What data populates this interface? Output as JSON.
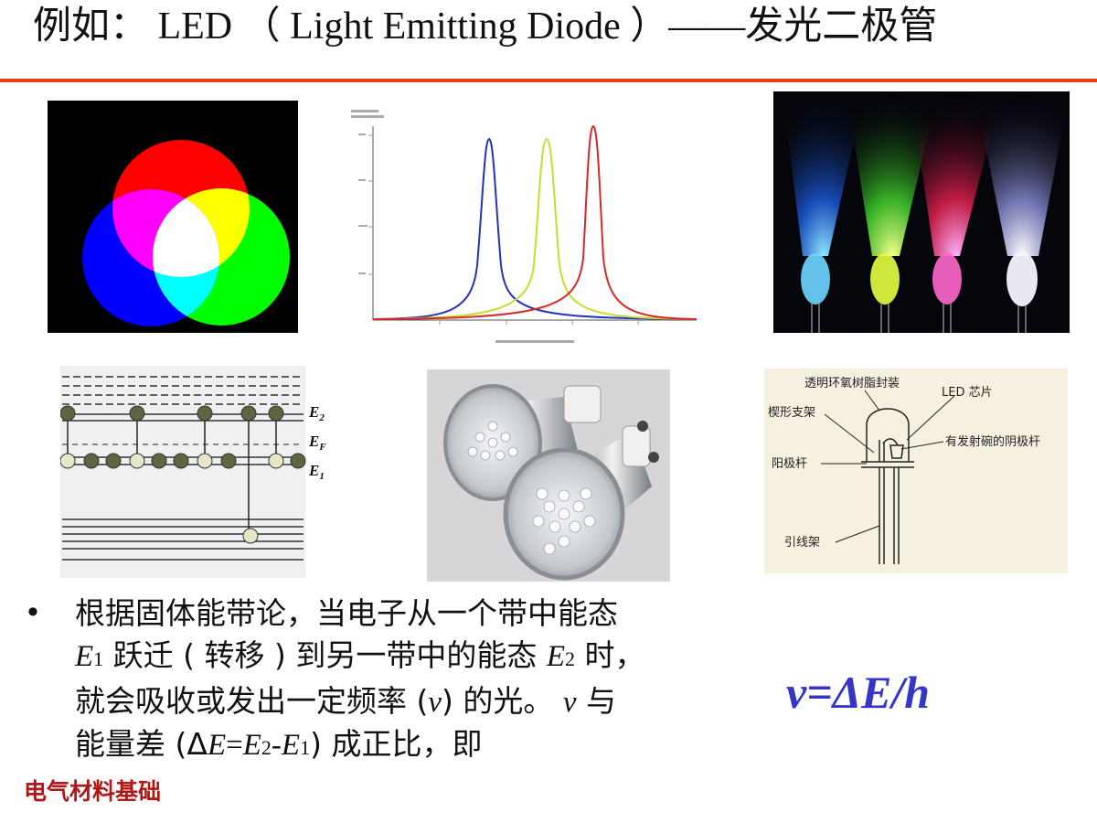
{
  "slide": {
    "title": "例如： LED （ Light Emitting Diode ）——发光二极管",
    "footer": "电气材料基础"
  },
  "energy_diagram": {
    "labels": {
      "e2": "E",
      "e2_sub": "2",
      "ef": "E",
      "ef_sub": "F",
      "e1": "E",
      "e1_sub": "1"
    }
  },
  "led_structure": {
    "labels": {
      "epoxy": "透明环氧树脂封装",
      "chip": "LED 芯片",
      "wedge": "楔形支架",
      "cathode": "有发射碗的阴极杆",
      "anode": "阳极杆",
      "lead": "引线架"
    }
  },
  "bullet": {
    "line1": "根据固体能带论，当电子从一个带中能态",
    "l2_a": "E",
    "l2_sub1": "1",
    "l2_b": " 跃迁 ( 转移 ) 到另一带中的能态 ",
    "l2_c": "E",
    "l2_sub2": "2",
    "l2_d": " 时，",
    "l3_a": "就会吸收或发出一定频率 (",
    "l3_nu": "ν",
    "l3_b": ") 的光。 ",
    "l3_nu2": "ν",
    "l3_c": " 与",
    "l4_a": "能量差 (Δ",
    "l4_e": "E",
    "l4_eq": "=",
    "l4_e2": "E",
    "l4_s2": "2",
    "l4_minus": "-",
    "l4_e1": "E",
    "l4_s1": "1",
    "l4_b": ") 成正比，即"
  },
  "formula": "ν=ΔE/h"
}
